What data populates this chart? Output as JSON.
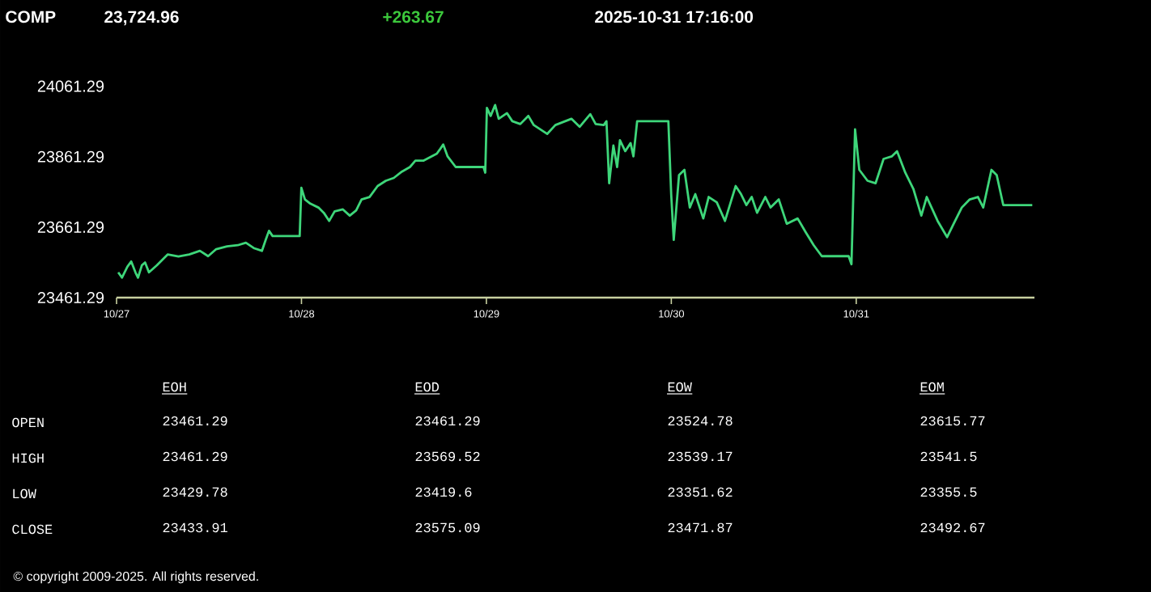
{
  "chart_data": {
    "type": "line",
    "title": "COMP",
    "annotations": [
      "23,724.96",
      "+263.67",
      "2025-10-31 17:16:00",
      "EOH",
      "EOD",
      "EOW",
      "EOM",
      "OPEN",
      "HIGH",
      "LOW",
      "CLOSE",
      "23461.29",
      "23461.29",
      "23524.78",
      "23615.77",
      "23461.29",
      "23569.52",
      "23539.17",
      "23541.5",
      "23429.78",
      "23419.6",
      "23351.62",
      "23355.5",
      "23433.91",
      "23575.09",
      "23471.87",
      "23492.67",
      "© copyright 2009-2025. All rights reserved."
    ],
    "color": "#3ed67a",
    "x": [
      "2025-10-27T00:13",
      "2025-10-27T00:42",
      "2025-10-27T01:24",
      "2025-10-27T01:54",
      "2025-10-27T02:27",
      "2025-10-27T02:47",
      "2025-10-27T03:17",
      "2025-10-27T03:42",
      "2025-10-27T04:12",
      "2025-10-27T05:14",
      "2025-10-27T06:39",
      "2025-10-27T08:02",
      "2025-10-27T09:26",
      "2025-10-27T10:49",
      "2025-10-27T11:53",
      "2025-10-27T12:56",
      "2025-10-27T14:20",
      "2025-10-27T15:43",
      "2025-10-27T16:47",
      "2025-10-27T17:48",
      "2025-10-27T18:52",
      "2025-10-27T19:21",
      "2025-10-27T19:47",
      "2025-10-27T20:15",
      "2025-10-27T23:46",
      "2025-10-27T23:59",
      "2025-10-28T00:27",
      "2025-10-28T01:09",
      "2025-10-28T02:12",
      "2025-10-28T02:54",
      "2025-10-28T03:36",
      "2025-10-28T04:18",
      "2025-10-28T05:21",
      "2025-10-28T06:16",
      "2025-10-28T07:06",
      "2025-10-28T07:48",
      "2025-10-28T08:50",
      "2025-10-28T09:53",
      "2025-10-28T10:57",
      "2025-10-28T11:59",
      "2025-10-28T13:02",
      "2025-10-28T14:05",
      "2025-10-28T14:47",
      "2025-10-28T15:49",
      "2025-10-28T16:52",
      "2025-10-28T17:34",
      "2025-10-28T17:56",
      "2025-10-28T18:24",
      "2025-10-28T18:58",
      "2025-10-28T20:01",
      "2025-10-28T23:38",
      "2025-10-28T23:51",
      "2025-10-29T00:04",
      "2025-10-29T00:33",
      "2025-10-29T01:08",
      "2025-10-29T01:36",
      "2025-10-29T02:40",
      "2025-10-29T03:22",
      "2025-10-29T04:24",
      "2025-10-29T05:27",
      "2025-10-29T06:09",
      "2025-10-29T07:54",
      "2025-10-29T08:57",
      "2025-10-29T11:02",
      "2025-10-29T12:06",
      "2025-10-29T13:29",
      "2025-10-29T14:11",
      "2025-10-29T15:14",
      "2025-10-29T15:35",
      "2025-10-29T15:56",
      "2025-10-29T16:29",
      "2025-10-29T16:58",
      "2025-10-29T17:20",
      "2025-10-29T18:01",
      "2025-10-29T18:43",
      "2025-10-29T19:05",
      "2025-10-29T19:34",
      "2025-10-29T23:37",
      "2025-10-29T23:59",
      "2025-10-30T00:19",
      "2025-10-30T01:00",
      "2025-10-30T01:42",
      "2025-10-30T02:24",
      "2025-10-30T03:07",
      "2025-10-30T04:09",
      "2025-10-30T04:51",
      "2025-10-30T05:54",
      "2025-10-30T06:58",
      "2025-10-30T08:21",
      "2025-10-30T09:03",
      "2025-10-30T09:45",
      "2025-10-30T10:26",
      "2025-10-30T11:08",
      "2025-10-30T12:12",
      "2025-10-30T12:53",
      "2025-10-30T13:57",
      "2025-10-30T14:59",
      "2025-10-30T16:24",
      "2025-10-30T17:25",
      "2025-10-30T18:29",
      "2025-10-30T19:32",
      "2025-10-30T23:01",
      "2025-10-30T23:23",
      "2025-10-30T23:51",
      "2025-10-31T00:24",
      "2025-10-31T01:28",
      "2025-10-31T02:31",
      "2025-10-31T03:33",
      "2025-10-31T04:36",
      "2025-10-31T05:18",
      "2025-10-31T06:22",
      "2025-10-31T07:25",
      "2025-10-31T08:27",
      "2025-10-31T09:09",
      "2025-10-31T10:34",
      "2025-10-31T11:48",
      "2025-10-31T12:39",
      "2025-10-31T13:42",
      "2025-10-31T14:44",
      "2025-10-31T15:48",
      "2025-10-31T16:29",
      "2025-10-31T17:33",
      "2025-10-31T18:14",
      "2025-10-31T19:05",
      "2025-10-31T22:51"
    ],
    "values": [
      23533,
      23518,
      23549,
      23564,
      23533,
      23518,
      23553,
      23561,
      23533,
      23553,
      23584,
      23578,
      23584,
      23594,
      23579,
      23599,
      23607,
      23610,
      23617,
      23602,
      23594,
      23625,
      23651,
      23636,
      23636,
      23773,
      23740,
      23728,
      23717,
      23702,
      23679,
      23706,
      23712,
      23694,
      23709,
      23740,
      23747,
      23778,
      23793,
      23801,
      23819,
      23832,
      23850,
      23850,
      23862,
      23870,
      23881,
      23896,
      23862,
      23832,
      23832,
      23816,
      24000,
      23977,
      24008,
      23969,
      23985,
      23962,
      23954,
      23977,
      23951,
      23926,
      23951,
      23969,
      23946,
      23982,
      23954,
      23951,
      23962,
      23786,
      23893,
      23832,
      23908,
      23877,
      23900,
      23862,
      23962,
      23962,
      23755,
      23625,
      23809,
      23824,
      23717,
      23755,
      23686,
      23747,
      23732,
      23679,
      23778,
      23755,
      23724,
      23747,
      23702,
      23747,
      23717,
      23740,
      23671,
      23686,
      23648,
      23610,
      23579,
      23579,
      23556,
      23939,
      23824,
      23793,
      23786,
      23855,
      23862,
      23877,
      23816,
      23770,
      23694,
      23747,
      23679,
      23633,
      23671,
      23717,
      23740,
      23747,
      23717,
      23824,
      23809,
      23724,
      23724
    ],
    "xlim": [
      "2025-10-27T00:00",
      "2025-10-31T23:08"
    ],
    "ylim": [
      23461.29,
      24061.29
    ],
    "xticks": [
      {
        "value": "2025-10-27",
        "label": "10/27"
      },
      {
        "value": "2025-10-28",
        "label": "10/28"
      },
      {
        "value": "2025-10-29",
        "label": "10/29"
      },
      {
        "value": "2025-10-30",
        "label": "10/30"
      },
      {
        "value": "2025-10-31",
        "label": "10/31"
      }
    ],
    "yticks": [
      {
        "value": 23461.29,
        "label": "23461.29"
      },
      {
        "value": 23661.29,
        "label": "23661.29"
      },
      {
        "value": 23861.29,
        "label": "23861.29"
      },
      {
        "value": 24061.29,
        "label": "24061.29"
      }
    ],
    "grid": false
  }
}
